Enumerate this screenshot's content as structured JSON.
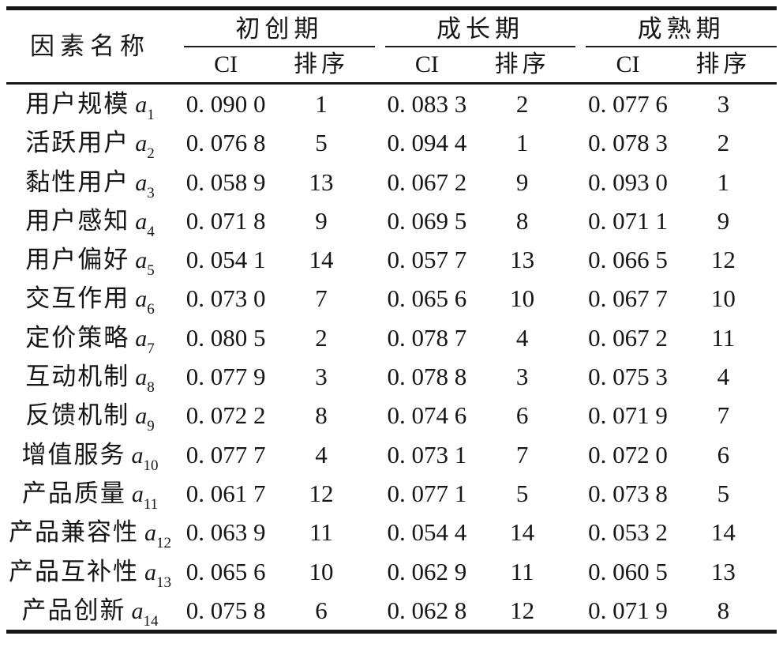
{
  "table": {
    "colors": {
      "background": "#ffffff",
      "text": "#161616",
      "rules": "#161616"
    },
    "header": {
      "factor_col": "因素名称",
      "ci_label": "CI",
      "rank_label": "排序",
      "periods": [
        {
          "label": "初创期"
        },
        {
          "label": "成长期"
        },
        {
          "label": "成熟期"
        }
      ]
    },
    "rows": [
      {
        "name": "用户规模",
        "var": "a",
        "sub": "1",
        "values": [
          "0. 090 0",
          "1",
          "0. 083 3",
          "2",
          "0. 077 6",
          "3"
        ]
      },
      {
        "name": "活跃用户",
        "var": "a",
        "sub": "2",
        "values": [
          "0. 076 8",
          "5",
          "0. 094 4",
          "1",
          "0. 078 3",
          "2"
        ]
      },
      {
        "name": "黏性用户",
        "var": "a",
        "sub": "3",
        "values": [
          "0. 058 9",
          "13",
          "0. 067 2",
          "9",
          "0. 093 0",
          "1"
        ]
      },
      {
        "name": "用户感知",
        "var": "a",
        "sub": "4",
        "values": [
          "0. 071 8",
          "9",
          "0. 069 5",
          "8",
          "0. 071 1",
          "9"
        ]
      },
      {
        "name": "用户偏好",
        "var": "a",
        "sub": "5",
        "values": [
          "0. 054 1",
          "14",
          "0. 057 7",
          "13",
          "0. 066 5",
          "12"
        ]
      },
      {
        "name": "交互作用",
        "var": "a",
        "sub": "6",
        "values": [
          "0. 073 0",
          "7",
          "0. 065 6",
          "10",
          "0. 067 7",
          "10"
        ]
      },
      {
        "name": "定价策略",
        "var": "a",
        "sub": "7",
        "values": [
          "0. 080 5",
          "2",
          "0. 078 7",
          "4",
          "0. 067 2",
          "11"
        ]
      },
      {
        "name": "互动机制",
        "var": "a",
        "sub": "8",
        "values": [
          "0. 077 9",
          "3",
          "0. 078 8",
          "3",
          "0. 075 3",
          "4"
        ]
      },
      {
        "name": "反馈机制",
        "var": "a",
        "sub": "9",
        "values": [
          "0. 072 2",
          "8",
          "0. 074 6",
          "6",
          "0. 071 9",
          "7"
        ]
      },
      {
        "name": "增值服务",
        "var": "a",
        "sub": "10",
        "values": [
          "0. 077 7",
          "4",
          "0. 073 1",
          "7",
          "0. 072 0",
          "6"
        ]
      },
      {
        "name": "产品质量",
        "var": "a",
        "sub": "11",
        "values": [
          "0. 061 7",
          "12",
          "0. 077 1",
          "5",
          "0. 073 8",
          "5"
        ]
      },
      {
        "name": "产品兼容性",
        "var": "a",
        "sub": "12",
        "values": [
          "0. 063 9",
          "11",
          "0. 054 4",
          "14",
          "0. 053 2",
          "14"
        ]
      },
      {
        "name": "产品互补性",
        "var": "a",
        "sub": "13",
        "values": [
          "0. 065 6",
          "10",
          "0. 062 9",
          "11",
          "0. 060 5",
          "13"
        ]
      },
      {
        "name": "产品创新",
        "var": "a",
        "sub": "14",
        "values": [
          "0. 075 8",
          "6",
          "0. 062 8",
          "12",
          "0. 071 9",
          "8"
        ]
      }
    ]
  }
}
